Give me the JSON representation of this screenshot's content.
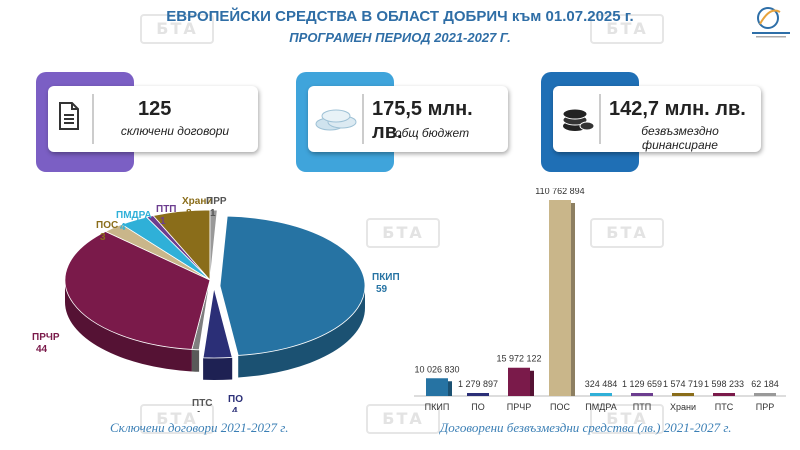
{
  "header": {
    "title": "ЕВРОПЕЙСКИ СРЕДСТВА В ОБЛАСТ ДОБРИЧ към 01.07.2025 г.",
    "subtitle": "ПРОГРАМЕН ПЕРИОД  2021-2027 Г."
  },
  "watermark": "БТА",
  "cards": [
    {
      "value": "125",
      "label": "сключени договори",
      "icon": "document-icon",
      "color": "#7b5fc4"
    },
    {
      "value": "175,5 млн. лв.",
      "label": "общ бюджет",
      "icon": "coins-stack-icon",
      "color": "#3fa4db"
    },
    {
      "value": "142,7 млн. лв.",
      "label": "безвъзмездно финансиране",
      "icon": "money-stack-icon",
      "color": "#1f6fb5"
    }
  ],
  "chart_data": [
    {
      "type": "pie",
      "caption": "Сключени договори 2021-2027 г.",
      "categories": [
        "ПКИП",
        "ПО",
        "ПТС",
        "ПРЧР",
        "ПОС",
        "ПМДРА",
        "ПТП",
        "Храни",
        "ПРР"
      ],
      "values": [
        59,
        4,
        1,
        44,
        3,
        4,
        1,
        8,
        1
      ],
      "colors": [
        "#2673a3",
        "#2b2f77",
        "#7f7f7f",
        "#7a1a4a",
        "#c9b68a",
        "#2fb0d8",
        "#6c3d8f",
        "#8a6d1a",
        "#999999"
      ]
    },
    {
      "type": "bar",
      "caption": "Договорени безвъзмездни средства (лв.)  2021-2027 г.",
      "categories": [
        "ПКИП",
        "ПО",
        "ПРЧР",
        "ПОС",
        "ПМДРА",
        "ПТП",
        "Храни",
        "ПТС",
        "ПРР"
      ],
      "values": [
        10026830,
        1279897,
        15972122,
        110762894,
        324484,
        1129659,
        1574719,
        1598233,
        62184
      ],
      "value_labels": [
        "10 026 830",
        "1 279 897",
        "15 972 122",
        "110 762 894",
        "324 484",
        "1 129 659",
        "1 574 719",
        "1 598 233",
        "62 184"
      ],
      "colors": [
        "#2673a3",
        "#2b2f77",
        "#7a1a4a",
        "#c9b68a",
        "#2fb0d8",
        "#6c3d8f",
        "#8a6d1a",
        "#7a1a4a",
        "#999999"
      ]
    }
  ]
}
